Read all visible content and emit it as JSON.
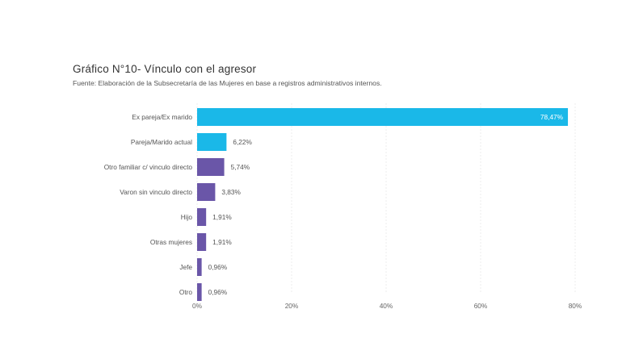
{
  "chart": {
    "title": "Gráfico N°10- Vínculo con el agresor",
    "subtitle": "Fuente: Elaboración de la Subsecretaría de las Mujeres en base a registros administrativos internos."
  },
  "chart_data": {
    "type": "bar",
    "orientation": "horizontal",
    "title": "Gráfico N°10- Vínculo con el agresor",
    "subtitle": "Fuente: Elaboración de la Subsecretaría de las Mujeres en base a registros administrativos internos.",
    "categories": [
      "Ex pareja/Ex marido",
      "Pareja/Marido actual",
      "Otro familiar c/ vinculo directo",
      "Varon sin vinculo directo",
      "Hijo",
      "Otras mujeres",
      "Jefe",
      "Otro"
    ],
    "values": [
      78.47,
      6.22,
      5.74,
      3.83,
      1.91,
      1.91,
      0.96,
      0.96
    ],
    "value_labels": [
      "78,47%",
      "6,22%",
      "5,74%",
      "3,83%",
      "1,91%",
      "1,91%",
      "0,96%",
      "0,96%"
    ],
    "colors": [
      "#1ab8e8",
      "#1ab8e8",
      "#6a56a8",
      "#6a56a8",
      "#6a56a8",
      "#6a56a8",
      "#6a56a8",
      "#6a56a8"
    ],
    "xlim": [
      0,
      80
    ],
    "x_ticks": [
      0,
      20,
      40,
      60,
      80
    ],
    "x_tick_labels": [
      "0%",
      "20%",
      "40%",
      "60%",
      "80%"
    ],
    "xlabel": "",
    "ylabel": "",
    "grid": true,
    "legend": "none"
  }
}
